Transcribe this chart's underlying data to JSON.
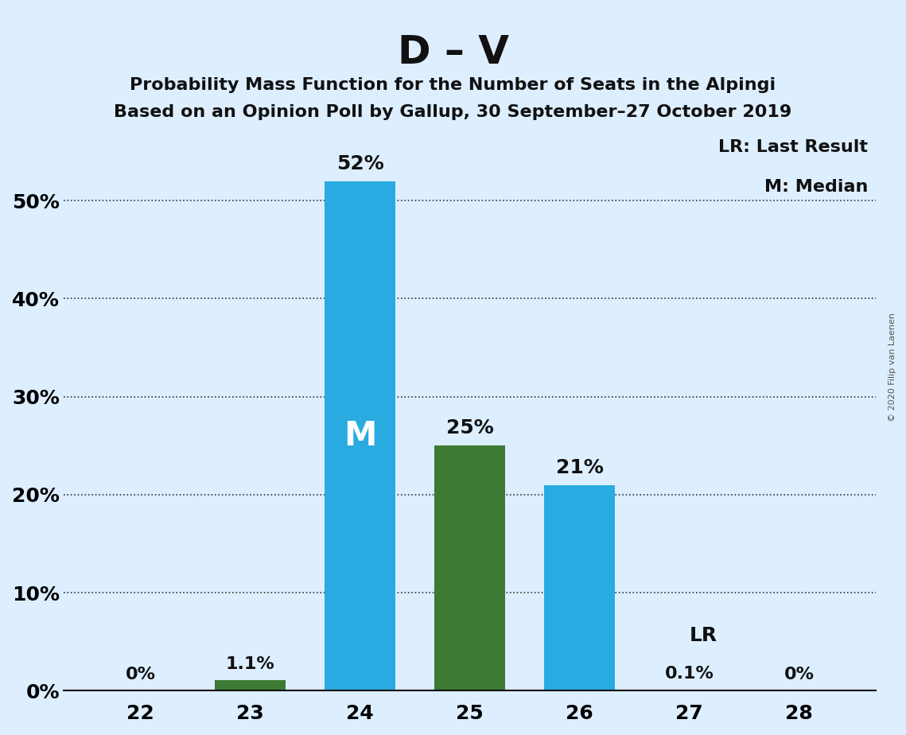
{
  "title": "D – V",
  "subtitle1": "Probability Mass Function for the Number of Seats in the Alpingi",
  "subtitle2": "Based on an Opinion Poll by Gallup, 30 September–27 October 2019",
  "copyright": "© 2020 Filip van Laenen",
  "seats": [
    22,
    23,
    24,
    25,
    26,
    27,
    28
  ],
  "values": [
    0.0,
    1.1,
    52.0,
    25.0,
    21.0,
    0.1,
    0.0
  ],
  "bar_colors": [
    "#29abe2",
    "#3d7a34",
    "#29abe2",
    "#3d7a34",
    "#29abe2",
    "#29abe2",
    "#29abe2"
  ],
  "bar_labels": [
    "0%",
    "1.1%",
    "52%",
    "25%",
    "21%",
    "0.1%",
    "0%"
  ],
  "inside_labels": [
    "",
    "",
    "M",
    "",
    "",
    "",
    ""
  ],
  "above_labels": [
    "",
    "",
    "",
    "",
    "",
    "LR",
    ""
  ],
  "legend_lr": "LR: Last Result",
  "legend_m": "M: Median",
  "background_color": "#ddeeff",
  "bar_area_color": "#ddeeff",
  "yticks": [
    0,
    10,
    20,
    30,
    40,
    50
  ],
  "ylim": [
    0,
    58
  ],
  "title_fontsize": 36,
  "subtitle_fontsize": 16,
  "label_fontsize": 16,
  "tick_fontsize": 18,
  "inside_label_color": "#ffffff",
  "inside_label_fontsize": 22,
  "dotted_gridline_color": "#333333",
  "axis_color": "#111111"
}
